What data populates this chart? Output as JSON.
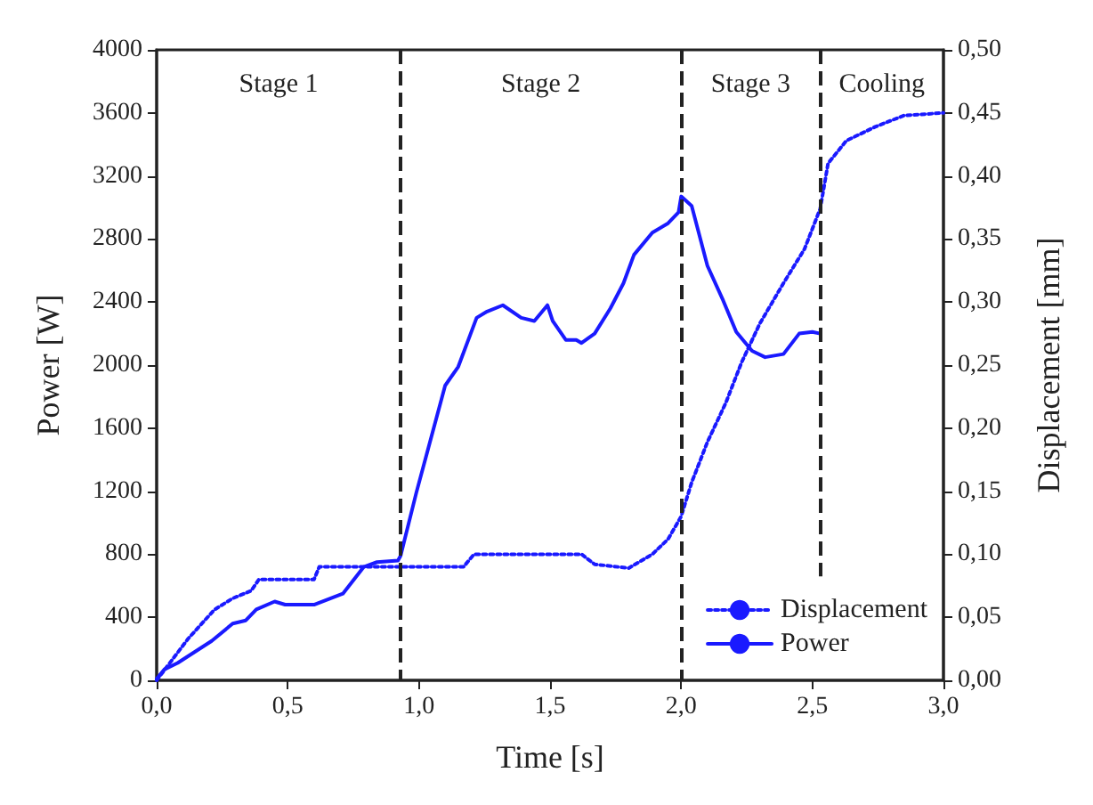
{
  "chart_data": {
    "type": "line",
    "xlabel": "Time [s]",
    "ylabel": "Power [W]",
    "y2label": "Displacement [mm]",
    "xlim": [
      0,
      3
    ],
    "xticks": [
      {
        "value": 0,
        "label": "0,0"
      },
      {
        "value": 0.5,
        "label": "0,5"
      },
      {
        "value": 1,
        "label": "1,0"
      },
      {
        "value": 1.5,
        "label": "1,5"
      },
      {
        "value": 2,
        "label": "2,0"
      },
      {
        "value": 2.5,
        "label": "2,5"
      },
      {
        "value": 3,
        "label": "3,0"
      }
    ],
    "ylim": [
      0,
      4000
    ],
    "yticks": [
      0,
      400,
      800,
      1200,
      1600,
      2000,
      2400,
      2800,
      3200,
      3600,
      4000
    ],
    "y2lim": [
      0,
      0.5
    ],
    "y2ticks": [
      {
        "value": 0,
        "label": "0,00"
      },
      {
        "value": 0.05,
        "label": "0,05"
      },
      {
        "value": 0.1,
        "label": "0,10"
      },
      {
        "value": 0.15,
        "label": "0,15"
      },
      {
        "value": 0.2,
        "label": "0,20"
      },
      {
        "value": 0.25,
        "label": "0,25"
      },
      {
        "value": 0.3,
        "label": "0,30"
      },
      {
        "value": 0.35,
        "label": "0,35"
      },
      {
        "value": 0.4,
        "label": "0,40"
      },
      {
        "value": 0.45,
        "label": "0,45"
      },
      {
        "value": 0.5,
        "label": "0,50"
      }
    ],
    "grid": false,
    "legend": "bottom right",
    "marker": "none",
    "series": [
      {
        "name": "Displacement",
        "color": "#1a1aff",
        "axis": "y2",
        "line_style": "dotted",
        "x": [
          0,
          0.08,
          0.12,
          0.22,
          0.29,
          0.36,
          0.39,
          0.6,
          0.62,
          0.93,
          1.17,
          1.21,
          1.56,
          1.62,
          1.67,
          1.8,
          1.89,
          1.95,
          2.0,
          2.04,
          2.1,
          2.17,
          2.23,
          2.3,
          2.39,
          2.47,
          2.53,
          2.56,
          2.63,
          2.74,
          2.85,
          3.0
        ],
        "values": [
          0,
          0.022,
          0.033,
          0.056,
          0.065,
          0.071,
          0.08,
          0.08,
          0.09,
          0.09,
          0.09,
          0.1,
          0.1,
          0.1,
          0.092,
          0.089,
          0.1,
          0.112,
          0.13,
          0.157,
          0.189,
          0.22,
          0.252,
          0.283,
          0.315,
          0.342,
          0.374,
          0.41,
          0.428,
          0.439,
          0.448,
          0.45
        ]
      },
      {
        "name": "Power",
        "color": "#1a1aff",
        "line_style": "solid",
        "x": [
          0,
          0.03,
          0.08,
          0.21,
          0.29,
          0.34,
          0.38,
          0.45,
          0.49,
          0.6,
          0.71,
          0.79,
          0.84,
          0.92,
          0.93,
          0.99,
          1.1,
          1.15,
          1.22,
          1.26,
          1.32,
          1.39,
          1.44,
          1.49,
          1.51,
          1.56,
          1.6,
          1.62,
          1.67,
          1.73,
          1.78,
          1.82,
          1.89,
          1.95,
          1.99,
          2.0,
          2.04,
          2.1,
          2.16,
          2.21,
          2.27,
          2.32,
          2.39,
          2.45,
          2.5,
          2.53
        ],
        "values": [
          10,
          70,
          110,
          250,
          360,
          380,
          450,
          500,
          480,
          480,
          550,
          720,
          750,
          760,
          790,
          1190,
          1870,
          1990,
          2300,
          2340,
          2380,
          2300,
          2280,
          2380,
          2280,
          2160,
          2160,
          2140,
          2200,
          2360,
          2520,
          2700,
          2840,
          2900,
          2970,
          3070,
          3010,
          2630,
          2410,
          2210,
          2090,
          2050,
          2070,
          2200,
          2210,
          2200
        ]
      }
    ],
    "ref_lines": [
      {
        "axis": "x",
        "value": 0.93,
        "color": "#222222",
        "line_style": "dashed"
      },
      {
        "axis": "x",
        "value": 2.0,
        "color": "#222222",
        "line_style": "dashed"
      },
      {
        "axis": "x",
        "value": 2.53,
        "color": "#222222",
        "line_style": "dashed"
      }
    ],
    "annotations": [
      "Stage 1",
      "Stage 2",
      "Stage 3",
      "Cooling"
    ]
  }
}
